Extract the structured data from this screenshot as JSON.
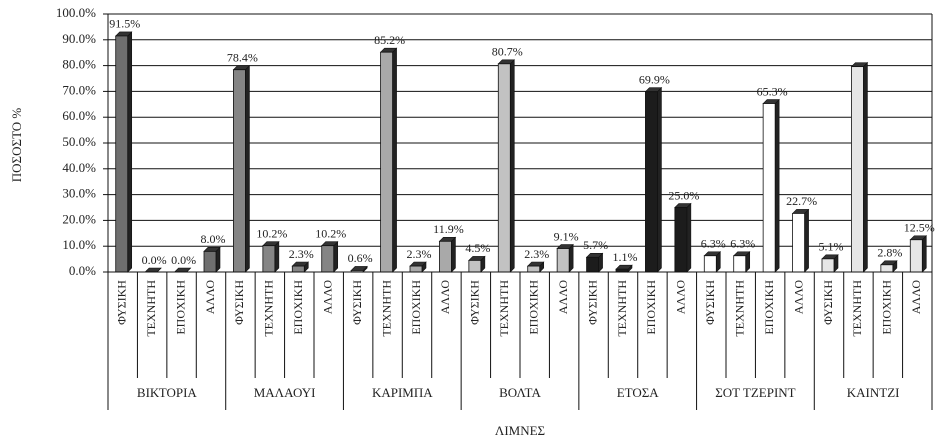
{
  "chart_data": {
    "type": "bar",
    "y_label": "ΠΟΣΟΣΤΟ %",
    "x_label": "ΛΙΜΝΕΣ",
    "categories": [
      "ΦΥΣΙΚΗ",
      "ΤΕΧΝΗΤΗ",
      "ΕΠΟΧΙΚΗ",
      "ΑΛΛΟ"
    ],
    "series": [
      {
        "name": "ΒΙΚΤΟΡΙΑ",
        "color": "#6f6f6f",
        "values": [
          91.5,
          0.0,
          0.0,
          8.0
        ],
        "value_labels": [
          "91.5%",
          "0.0%",
          "0.0%",
          "8.0%"
        ]
      },
      {
        "name": "ΜΑΛΑΟΥΙ",
        "color": "#858585",
        "values": [
          78.4,
          10.2,
          2.3,
          10.2
        ],
        "value_labels": [
          "78.4%",
          "10.2%",
          "2.3%",
          "10.2%"
        ]
      },
      {
        "name": "ΚΑΡΙΜΠΑ",
        "color": "#a9a9a9",
        "values": [
          0.6,
          85.2,
          2.3,
          11.9
        ],
        "value_labels": [
          "0.6%",
          "85.2%",
          "2.3%",
          "11.9%"
        ]
      },
      {
        "name": "ΒΟΛΤΑ",
        "color": "#c2c2c2",
        "values": [
          4.5,
          80.7,
          2.3,
          9.1
        ],
        "value_labels": [
          "4.5%",
          "80.7%",
          "2.3%",
          "9.1%"
        ]
      },
      {
        "name": "ΕΤΟΣΑ",
        "color": "#1c1c1c",
        "values": [
          5.7,
          1.1,
          69.9,
          25.0
        ],
        "value_labels": [
          "5.7%",
          "1.1%",
          "69.9%",
          "25.0%"
        ]
      },
      {
        "name": "ΣΟΤ ΤΖΕΡΙΝΤ",
        "color": "#ffffff",
        "values": [
          6.3,
          6.3,
          65.3,
          22.7
        ],
        "value_labels": [
          "6.3%",
          "6.3%",
          "65.3%",
          "22.7%"
        ]
      },
      {
        "name": "ΚΑΙΝΤΖΙ",
        "color": "#e6e6e6",
        "values": [
          5.1,
          79.6,
          2.8,
          12.5
        ],
        "value_labels": [
          "5.1%",
          null,
          "2.8%",
          "12.5%"
        ]
      }
    ],
    "ylim": [
      0,
      100
    ],
    "yticks": [
      {
        "value": 0,
        "label": "0.0%"
      },
      {
        "value": 10,
        "label": "10.0%"
      },
      {
        "value": 20,
        "label": "20.0%"
      },
      {
        "value": 30,
        "label": "30.0%"
      },
      {
        "value": 40,
        "label": "40.0%"
      },
      {
        "value": 50,
        "label": "50.0%"
      },
      {
        "value": 60,
        "label": "60.0%"
      },
      {
        "value": 70,
        "label": "70.0%"
      },
      {
        "value": 80,
        "label": "80.0%"
      },
      {
        "value": 90,
        "label": "90.0%"
      },
      {
        "value": 100,
        "label": "100.0%"
      }
    ],
    "grid": true
  }
}
